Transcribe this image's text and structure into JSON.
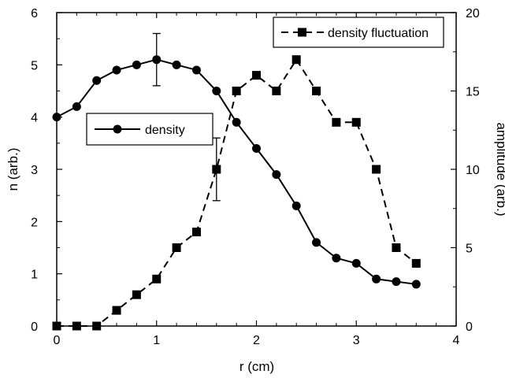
{
  "chart_data": {
    "type": "line",
    "title": "",
    "xlabel": "r (cm)",
    "ylabel_left": "n (arb.)",
    "ylabel_right": "amplitude (arb.)",
    "xlim": [
      0,
      4
    ],
    "ylim_left": [
      0,
      6
    ],
    "ylim_right": [
      0,
      20
    ],
    "x_ticks": [
      "0",
      "1",
      "2",
      "3",
      "4"
    ],
    "y_left_ticks": [
      "0",
      "1",
      "2",
      "3",
      "4",
      "5",
      "6"
    ],
    "y_right_ticks": [
      "0",
      "5",
      "10",
      "15",
      "20"
    ],
    "grid": false,
    "series": [
      {
        "name": "density",
        "axis": "left",
        "marker": "circle",
        "line_style": "solid",
        "x": [
          0,
          0.2,
          0.4,
          0.6,
          0.8,
          1.0,
          1.2,
          1.4,
          1.6,
          1.8,
          2.0,
          2.2,
          2.4,
          2.6,
          2.8,
          3.0,
          3.2,
          3.4,
          3.6
        ],
        "y": [
          4.0,
          4.2,
          4.7,
          4.9,
          5.0,
          5.1,
          5.0,
          4.9,
          4.5,
          3.9,
          3.4,
          2.9,
          2.3,
          1.6,
          1.3,
          1.2,
          0.9,
          0.85,
          0.8
        ],
        "error_bars": [
          {
            "x": 1.0,
            "y": 5.1,
            "err": 0.5
          }
        ]
      },
      {
        "name": "density fluctuation",
        "axis": "right",
        "marker": "square",
        "line_style": "dashed",
        "x": [
          0,
          0.2,
          0.4,
          0.6,
          0.8,
          1.0,
          1.2,
          1.4,
          1.6,
          1.8,
          2.0,
          2.2,
          2.4,
          2.6,
          2.8,
          3.0,
          3.2,
          3.4,
          3.6
        ],
        "y": [
          0,
          0,
          0,
          1,
          2,
          3,
          5,
          6,
          10,
          15,
          16,
          15,
          17,
          15,
          13,
          13,
          10,
          5,
          4
        ],
        "error_bars": [
          {
            "x": 1.6,
            "y": 10,
            "err": 2
          }
        ]
      }
    ],
    "legend_entries": [
      "density",
      "density fluctuation"
    ]
  }
}
